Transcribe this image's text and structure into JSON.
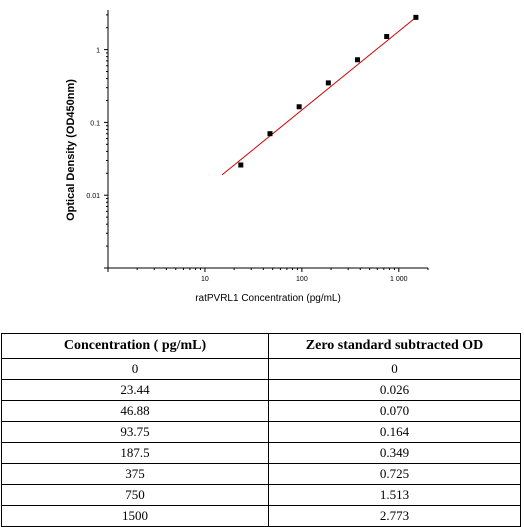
{
  "chart_data": {
    "type": "scatter",
    "xscale": "log",
    "yscale": "log",
    "xlim": [
      1,
      2000
    ],
    "ylim": [
      0.001,
      3.5
    ],
    "xlabel": "ratPVRL1 Concentration (pg/mL)",
    "ylabel": "Optical Density (OD450nm)",
    "x_ticks": [
      10,
      100,
      1000
    ],
    "x_tick_labels": [
      "10",
      "100",
      "1 000"
    ],
    "y_ticks": [
      0.01,
      0.1,
      1
    ],
    "y_tick_labels": [
      "0.01",
      "0.1",
      "1"
    ],
    "points": [
      {
        "x": 23.44,
        "y": 0.026
      },
      {
        "x": 46.88,
        "y": 0.07
      },
      {
        "x": 93.75,
        "y": 0.164
      },
      {
        "x": 187.5,
        "y": 0.349
      },
      {
        "x": 375,
        "y": 0.725
      },
      {
        "x": 750,
        "y": 1.513
      },
      {
        "x": 1500,
        "y": 2.773
      }
    ],
    "fit_line": {
      "x": [
        15,
        1500
      ],
      "y": [
        0.019,
        2.773
      ],
      "color": "#cc0000"
    },
    "marker_color": "#000000",
    "grid": false
  },
  "table": {
    "headers": [
      "Concentration ( pg/mL)",
      "Zero standard subtracted OD"
    ],
    "rows": [
      [
        "0",
        "0"
      ],
      [
        "23.44",
        "0.026"
      ],
      [
        "46.88",
        "0.070"
      ],
      [
        "93.75",
        "0.164"
      ],
      [
        "187.5",
        "0.349"
      ],
      [
        "375",
        "0.725"
      ],
      [
        "750",
        "1.513"
      ],
      [
        "1500",
        "2.773"
      ]
    ]
  }
}
